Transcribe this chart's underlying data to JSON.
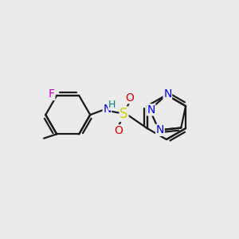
{
  "bg_color": "#ebebeb",
  "bond_color": "#1a1a1a",
  "atom_colors": {
    "F": "#cc00cc",
    "N": "#0000ee",
    "O": "#dd0000",
    "S": "#cccc00",
    "H": "#008080",
    "C": "#1a1a1a"
  },
  "font_size": 10,
  "bond_width": 1.6,
  "figsize": [
    3.0,
    3.0
  ],
  "dpi": 100
}
